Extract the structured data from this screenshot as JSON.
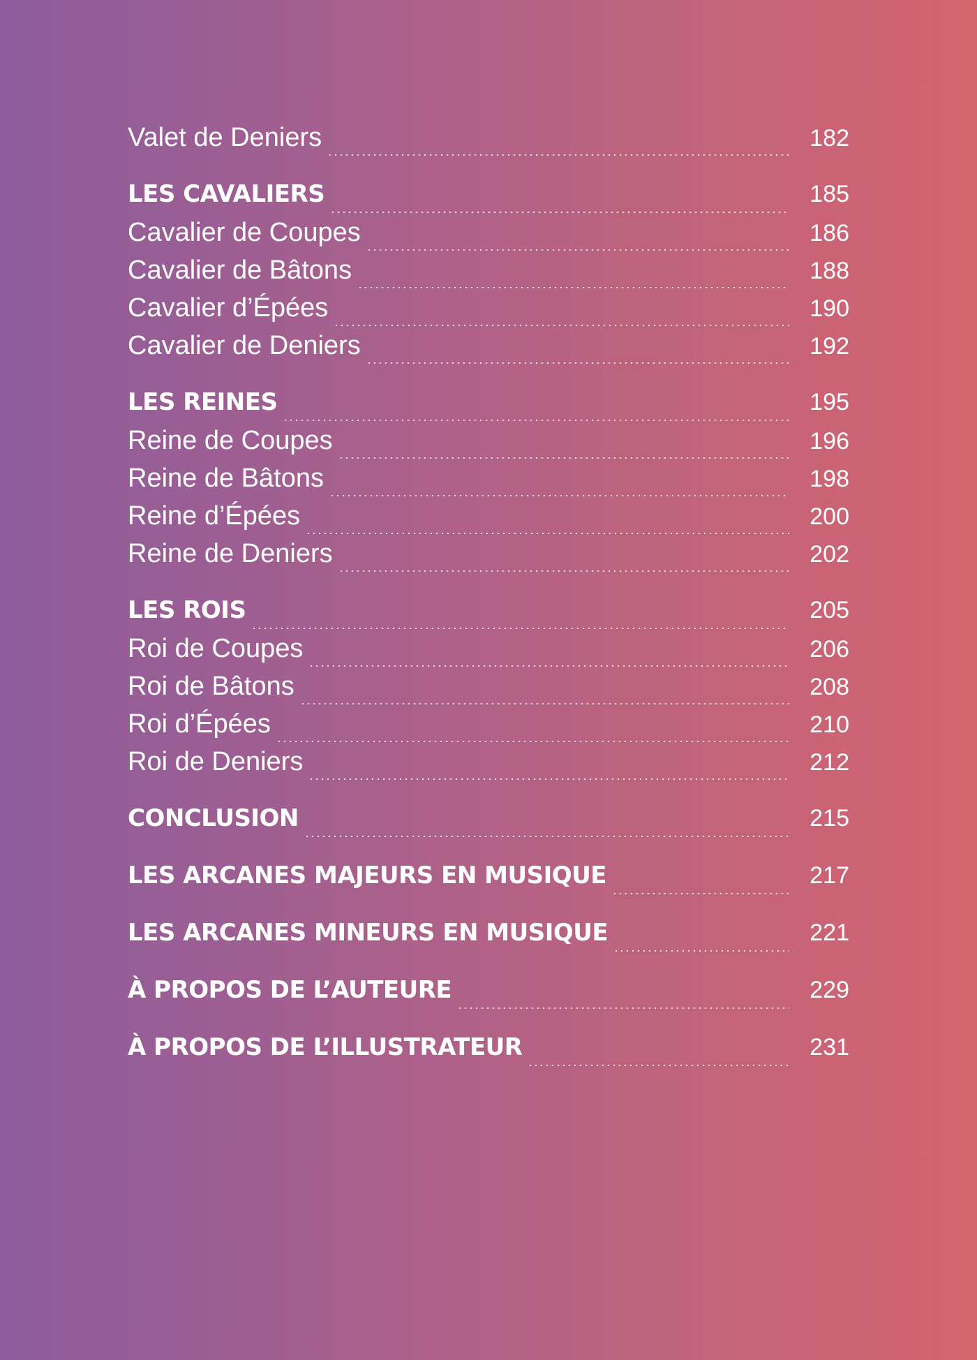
{
  "toc": {
    "entries": [
      {
        "title": "Valet de Deniers",
        "page": "182"
      },
      {
        "title": "LES CAVALIERS",
        "page": "185"
      },
      {
        "title": "Cavalier de Coupes",
        "page": "186"
      },
      {
        "title": "Cavalier de Bâtons",
        "page": "188"
      },
      {
        "title": "Cavalier d’Épées",
        "page": "190"
      },
      {
        "title": "Cavalier de Deniers",
        "page": "192"
      },
      {
        "title": "LES REINES",
        "page": "195"
      },
      {
        "title": "Reine de Coupes",
        "page": "196"
      },
      {
        "title": "Reine de Bâtons",
        "page": "198"
      },
      {
        "title": "Reine d’Épées",
        "page": "200"
      },
      {
        "title": "Reine de Deniers",
        "page": "202"
      },
      {
        "title": "LES ROIS",
        "page": "205"
      },
      {
        "title": "Roi de Coupes",
        "page": "206"
      },
      {
        "title": "Roi de Bâtons",
        "page": "208"
      },
      {
        "title": "Roi d’Épées",
        "page": "210"
      },
      {
        "title": "Roi de Deniers",
        "page": "212"
      },
      {
        "title": "CONCLUSION",
        "page": "215"
      },
      {
        "title": "LES ARCANES MAJEURS EN MUSIQUE",
        "page": "217"
      },
      {
        "title": "LES ARCANES MINEURS EN MUSIQUE",
        "page": "221"
      },
      {
        "title": "À PROPOS DE L’AUTEURE",
        "page": "229"
      },
      {
        "title": "À PROPOS DE L’ILLUSTRATEUR",
        "page": "231"
      }
    ]
  },
  "colors": {
    "gradient_left": "#8c5c9c",
    "gradient_right": "#d4656d",
    "text": "#ffffff"
  }
}
